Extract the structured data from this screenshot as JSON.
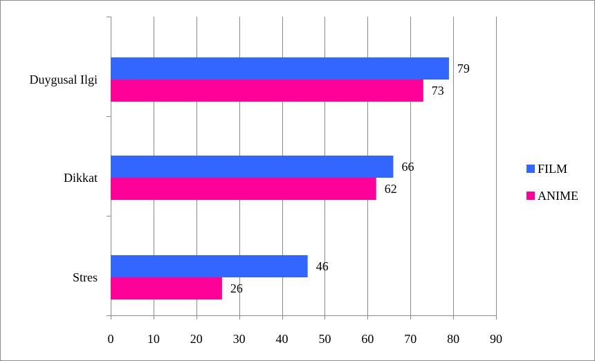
{
  "chart_data": {
    "type": "bar",
    "orientation": "horizontal",
    "categories": [
      "Duygusal Ilgi",
      "Dikkat",
      "Stres"
    ],
    "series": [
      {
        "name": "FILM",
        "values": [
          79,
          66,
          46
        ],
        "color": "#3366ff"
      },
      {
        "name": "ANIME",
        "values": [
          73,
          62,
          26
        ],
        "color": "#ff0099"
      }
    ],
    "xlim": [
      0,
      90
    ],
    "xticks": [
      0,
      10,
      20,
      30,
      40,
      50,
      60,
      70,
      80,
      90
    ],
    "grid": true,
    "data_labels": true,
    "legend_position": "right",
    "title": "",
    "xlabel": "",
    "ylabel": ""
  }
}
